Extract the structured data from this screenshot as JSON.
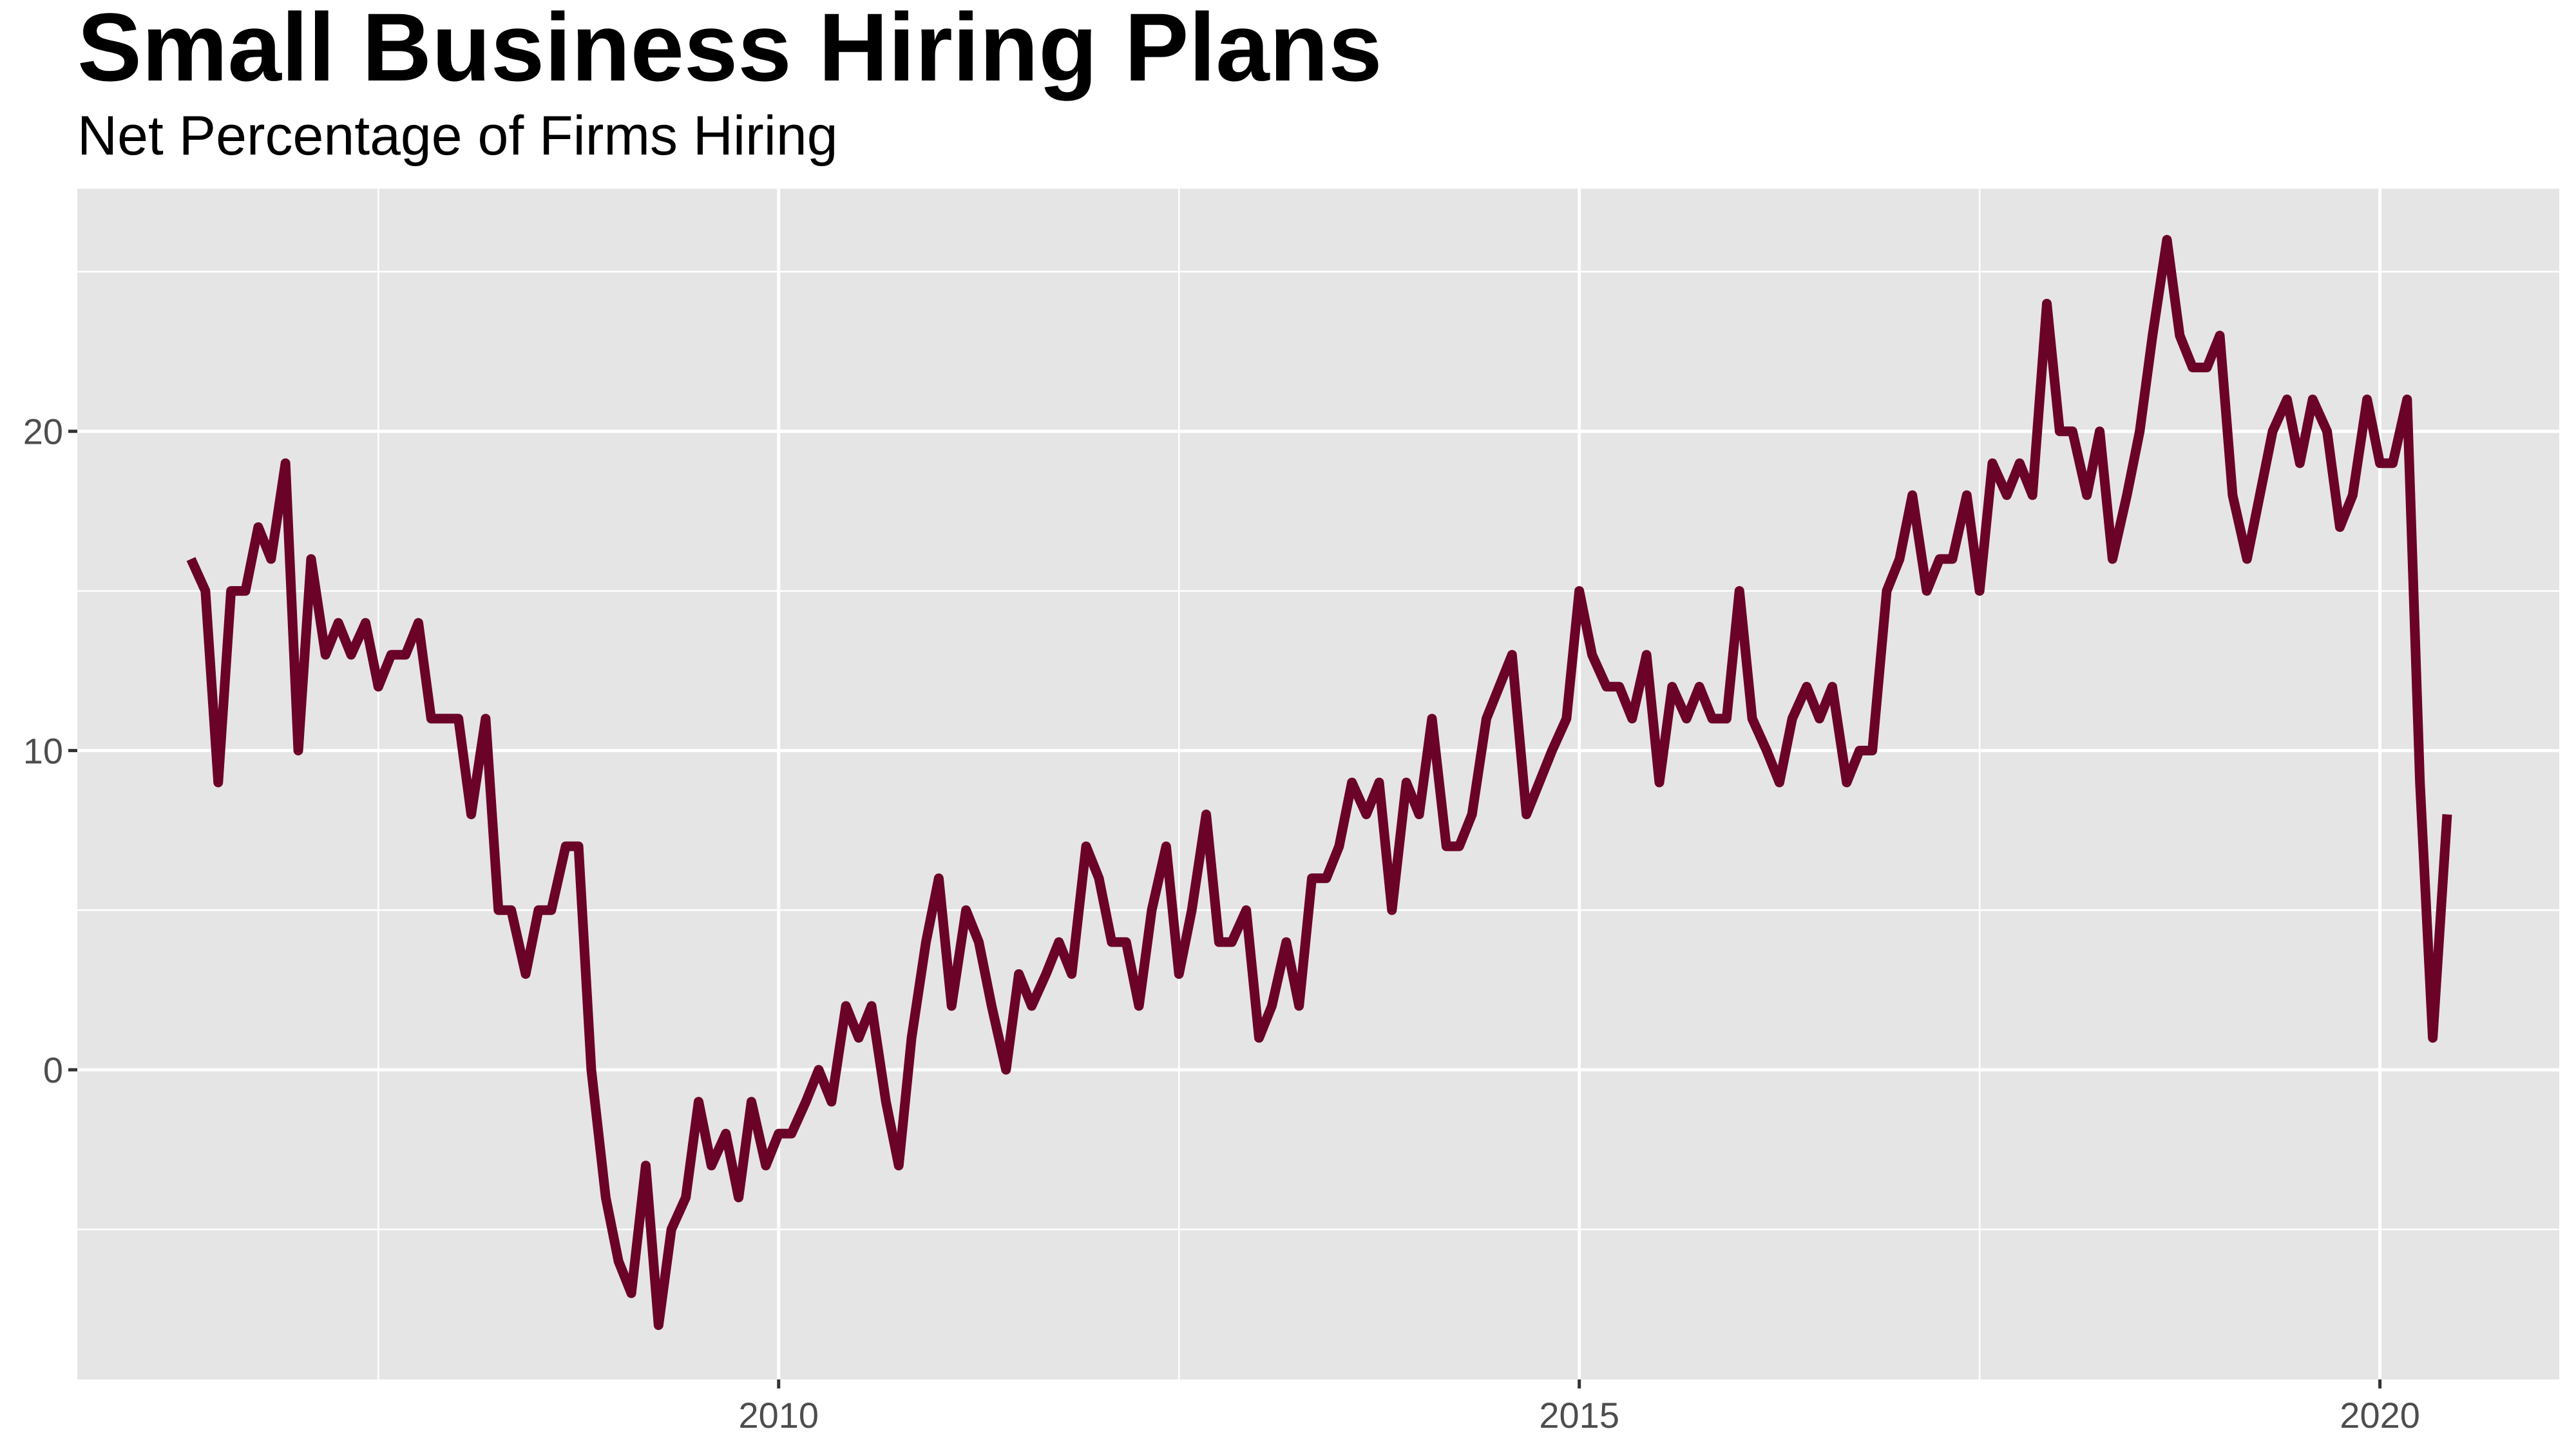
{
  "chart_data": {
    "type": "line",
    "title": "Small Business Hiring Plans",
    "subtitle": "Net Percentage of Firms Hiring",
    "x": [
      2006.33,
      2006.42,
      2006.5,
      2006.58,
      2006.67,
      2006.75,
      2006.83,
      2006.92,
      2007,
      2007.08,
      2007.17,
      2007.25,
      2007.33,
      2007.42,
      2007.5,
      2007.58,
      2007.67,
      2007.75,
      2007.83,
      2007.92,
      2008,
      2008.08,
      2008.17,
      2008.25,
      2008.33,
      2008.42,
      2008.5,
      2008.58,
      2008.67,
      2008.75,
      2008.83,
      2008.92,
      2009,
      2009.08,
      2009.17,
      2009.25,
      2009.33,
      2009.42,
      2009.5,
      2009.58,
      2009.67,
      2009.75,
      2009.83,
      2009.92,
      2010,
      2010.08,
      2010.17,
      2010.25,
      2010.33,
      2010.42,
      2010.5,
      2010.58,
      2010.67,
      2010.75,
      2010.83,
      2010.92,
      2011,
      2011.08,
      2011.17,
      2011.25,
      2011.33,
      2011.42,
      2011.5,
      2011.58,
      2011.67,
      2011.75,
      2011.83,
      2011.92,
      2012,
      2012.08,
      2012.17,
      2012.25,
      2012.33,
      2012.42,
      2012.5,
      2012.58,
      2012.67,
      2012.75,
      2012.83,
      2012.92,
      2013,
      2013.08,
      2013.17,
      2013.25,
      2013.33,
      2013.42,
      2013.5,
      2013.58,
      2013.67,
      2013.75,
      2013.83,
      2013.92,
      2014,
      2014.08,
      2014.17,
      2014.25,
      2014.33,
      2014.42,
      2014.5,
      2014.58,
      2014.67,
      2014.75,
      2014.83,
      2014.92,
      2015,
      2015.08,
      2015.17,
      2015.25,
      2015.33,
      2015.42,
      2015.5,
      2015.58,
      2015.67,
      2015.75,
      2015.83,
      2015.92,
      2016,
      2016.08,
      2016.17,
      2016.25,
      2016.33,
      2016.42,
      2016.5,
      2016.58,
      2016.67,
      2016.75,
      2016.83,
      2016.92,
      2017,
      2017.08,
      2017.17,
      2017.25,
      2017.33,
      2017.42,
      2017.5,
      2017.58,
      2017.67,
      2017.75,
      2017.83,
      2017.92,
      2018,
      2018.08,
      2018.17,
      2018.25,
      2018.33,
      2018.42,
      2018.5,
      2018.58,
      2018.67,
      2018.75,
      2018.83,
      2018.92,
      2019,
      2019.08,
      2019.17,
      2019.25,
      2019.33,
      2019.42,
      2019.5,
      2019.58,
      2019.67,
      2019.75,
      2019.83,
      2019.92,
      2020,
      2020.08,
      2020.17,
      2020.25,
      2020.33,
      2020.42
    ],
    "series": [
      {
        "color": "#6b0227",
        "values": [
          16,
          15,
          9,
          15,
          15,
          17,
          16,
          19,
          10,
          16,
          13,
          14,
          13,
          14,
          12,
          13,
          13,
          14,
          11,
          11,
          11,
          8,
          11,
          5,
          5,
          3,
          5,
          5,
          7,
          7,
          0,
          -4,
          -6,
          -7,
          -3,
          -8,
          -5,
          -4,
          -1,
          -3,
          -2,
          -4,
          -1,
          -3,
          -2,
          -2,
          -1,
          0,
          -1,
          2,
          1,
          2,
          -1,
          -3,
          1,
          4,
          6,
          2,
          5,
          4,
          2,
          0,
          3,
          2,
          3,
          4,
          3,
          7,
          6,
          4,
          4,
          2,
          5,
          7,
          3,
          5,
          8,
          4,
          4,
          5,
          1,
          2,
          4,
          2,
          6,
          6,
          7,
          9,
          8,
          9,
          5,
          9,
          8,
          11,
          7,
          7,
          8,
          11,
          12,
          13,
          8,
          9,
          10,
          11,
          15,
          13,
          12,
          12,
          11,
          13,
          9,
          12,
          11,
          12,
          11,
          11,
          15,
          11,
          10,
          9,
          11,
          12,
          11,
          12,
          9,
          10,
          10,
          15,
          16,
          18,
          15,
          16,
          16,
          18,
          15,
          19,
          18,
          19,
          18,
          24,
          20,
          20,
          18,
          20,
          16,
          18,
          20,
          23,
          26,
          23,
          22,
          22,
          23,
          18,
          16,
          18,
          20,
          21,
          19,
          21,
          20,
          17,
          18,
          21,
          19,
          19,
          21,
          9,
          1,
          8
        ]
      }
    ],
    "xlim": [
      2005.62,
      2021.12
    ],
    "ylim": [
      -9.7,
      27.6
    ],
    "xticks": [
      2010,
      2015,
      2020
    ],
    "yticks": [
      0,
      10,
      20
    ],
    "x_minor_grid": [
      2007.5,
      2012.5,
      2017.5
    ],
    "y_minor_grid": [
      -5,
      5,
      15,
      25
    ],
    "grid": true
  }
}
